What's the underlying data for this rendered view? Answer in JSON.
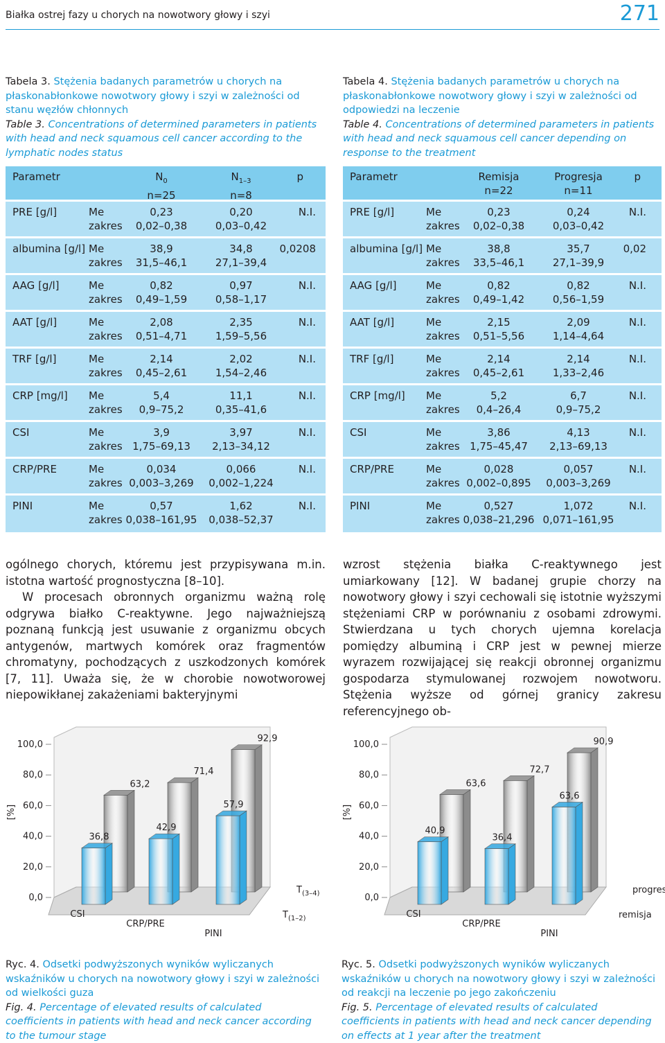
{
  "header": {
    "running_title": "Białka ostrej fazy u chorych na nowotwory głowy i szyi",
    "page": "271"
  },
  "tables": [
    {
      "label_pl": "Tabela 3.",
      "caption_pl": "Stężenia badanych parametrów u chorych na płaskonabłonkowe nowotwory głowy i szyi w zależności od stanu węzłów chłonnych",
      "label_en": "Table 3.",
      "caption_en": "Concentrations of determined parameters in patients with head and neck squamous cell cancer according to the lymphatic nodes status",
      "head": {
        "param": "Parametr",
        "groups": [
          {
            "main": "N",
            "sub": "0",
            "n": "n=25"
          },
          {
            "main": "N",
            "sub": "1–3",
            "n": "n=8"
          }
        ],
        "p": "p"
      },
      "rows": [
        {
          "param": "PRE [g/l]",
          "me": "Me",
          "zakres": "zakres",
          "values": [
            "0,23",
            "0,20"
          ],
          "ranges": [
            "0,02–0,38",
            "0,03–0,42"
          ],
          "p": "N.I."
        },
        {
          "param": "albumina [g/l]",
          "me": "Me",
          "zakres": "zakres",
          "values": [
            "38,9",
            "34,8"
          ],
          "ranges": [
            "31,5–46,1",
            "27,1–39,4"
          ],
          "p": "0,0208"
        },
        {
          "param": "AAG [g/l]",
          "me": "Me",
          "zakres": "zakres",
          "values": [
            "0,82",
            "0,97"
          ],
          "ranges": [
            "0,49–1,59",
            "0,58–1,17"
          ],
          "p": "N.I."
        },
        {
          "param": "AAT [g/l]",
          "me": "Me",
          "zakres": "zakres",
          "values": [
            "2,08",
            "2,35"
          ],
          "ranges": [
            "0,51–4,71",
            "1,59–5,56"
          ],
          "p": "N.I."
        },
        {
          "param": "TRF [g/l]",
          "me": "Me",
          "zakres": "zakres",
          "values": [
            "2,14",
            "2,02"
          ],
          "ranges": [
            "0,45–2,61",
            "1,54–2,46"
          ],
          "p": "N.I."
        },
        {
          "param": "CRP [mg/l]",
          "me": "Me",
          "zakres": "zakres",
          "values": [
            "5,4",
            "11,1"
          ],
          "ranges": [
            "0,9–75,2",
            "0,35–41,6"
          ],
          "p": "N.I."
        },
        {
          "param": "CSI",
          "me": "Me",
          "zakres": "zakres",
          "values": [
            "3,9",
            "3,97"
          ],
          "ranges": [
            "1,75–69,13",
            "2,13–34,12"
          ],
          "p": "N.I."
        },
        {
          "param": "CRP/PRE",
          "me": "Me",
          "zakres": "zakres",
          "values": [
            "0,034",
            "0,066"
          ],
          "ranges": [
            "0,003–3,269",
            "0,002–1,224"
          ],
          "p": "N.I."
        },
        {
          "param": "PINI",
          "me": "Me",
          "zakres": "zakres",
          "values": [
            "0,57",
            "1,62"
          ],
          "ranges": [
            "0,038–161,95",
            "0,038–52,37"
          ],
          "p": "N.I."
        }
      ]
    },
    {
      "label_pl": "Tabela 4.",
      "caption_pl": "Stężenia badanych parametrów u chorych na płaskonabłonkowe nowotwory głowy i szyi w zależności od odpowiedzi na leczenie",
      "label_en": "Table 4.",
      "caption_en": "Concentrations of determined parameters in patients with head and neck squamous cell cancer depending on response to the treatment",
      "head": {
        "param": "Parametr",
        "groups": [
          {
            "main": "Remisja",
            "n": "n=22"
          },
          {
            "main": "Progresja",
            "n": "n=11"
          }
        ],
        "p": "p"
      },
      "rows": [
        {
          "param": "PRE [g/l]",
          "me": "Me",
          "zakres": "zakres",
          "values": [
            "0,23",
            "0,24"
          ],
          "ranges": [
            "0,02–0,38",
            "0,03–0,42"
          ],
          "p": "N.I."
        },
        {
          "param": "albumina [g/l]",
          "me": "Me",
          "zakres": "zakres",
          "values": [
            "38,8",
            "35,7"
          ],
          "ranges": [
            "33,5–46,1",
            "27,1–39,9"
          ],
          "p": "0,02"
        },
        {
          "param": "AAG [g/l]",
          "me": "Me",
          "zakres": "zakres",
          "values": [
            "0,82",
            "0,82"
          ],
          "ranges": [
            "0,49–1,42",
            "0,56–1,59"
          ],
          "p": "N.I."
        },
        {
          "param": "AAT [g/l]",
          "me": "Me",
          "zakres": "zakres",
          "values": [
            "2,15",
            "2,09"
          ],
          "ranges": [
            "0,51–5,56",
            "1,14–4,64"
          ],
          "p": "N.I."
        },
        {
          "param": "TRF [g/l]",
          "me": "Me",
          "zakres": "zakres",
          "values": [
            "2,14",
            "2,14"
          ],
          "ranges": [
            "0,45–2,61",
            "1,33–2,46"
          ],
          "p": "N.I."
        },
        {
          "param": "CRP [mg/l]",
          "me": "Me",
          "zakres": "zakres",
          "values": [
            "5,2",
            "6,7"
          ],
          "ranges": [
            "0,4–26,4",
            "0,9–75,2"
          ],
          "p": "N.I."
        },
        {
          "param": "CSI",
          "me": "Me",
          "zakres": "zakres",
          "values": [
            "3,86",
            "4,13"
          ],
          "ranges": [
            "1,75–45,47",
            "2,13–69,13"
          ],
          "p": "N.I."
        },
        {
          "param": "CRP/PRE",
          "me": "Me",
          "zakres": "zakres",
          "values": [
            "0,028",
            "0,057"
          ],
          "ranges": [
            "0,002–0,895",
            "0,003–3,269"
          ],
          "p": "N.I."
        },
        {
          "param": "PINI",
          "me": "Me",
          "zakres": "zakres",
          "values": [
            "0,527",
            "1,072"
          ],
          "ranges": [
            "0,038–21,296",
            "0,071–161,95"
          ],
          "p": "N.I."
        }
      ]
    }
  ],
  "body": {
    "left": [
      "ogólnego chorych, któremu jest przypisywana m.in. istotna wartość prognostyczna [8–10].",
      "W procesach obronnych organizmu ważną rolę odgrywa białko C-reaktywne. Jego najważniejszą poznaną funkcją jest usuwanie z organizmu obcych antygenów, martwych komórek oraz fragmentów chromatyny, pochodzących z uszkodzonych komórek [7, 11]. Uważa się, że w chorobie nowotworowej niepowikłanej zakażeniami bakteryjnymi"
    ],
    "right": [
      "wzrost stężenia białka C-reaktywnego jest umiarkowany [12]. W badanej grupie chorzy na nowotwory głowy i szyi cechowali się istotnie wyższymi stężeniami CRP w porównaniu z osobami zdrowymi. Stwierdzana u tych chorych ujemna korelacja pomiędzy albuminą i CRP jest w pewnej mierze wyrazem rozwijającej się reakcji obronnej organizmu gospodarza stymulowanej rozwojem nowotworu. Stężenia wyższe od górnej granicy zakresu referencyjnego ob-"
    ]
  },
  "figures": [
    {
      "chart": {
        "type": "bar3d",
        "ylabel": "[%]",
        "categories": [
          "CSI",
          "CRP/PRE",
          "PINI"
        ],
        "ylim": [
          0,
          100
        ],
        "yticks": [
          {
            "value": 0,
            "label": "0,0"
          },
          {
            "value": 20,
            "label": "20,0"
          },
          {
            "value": 40,
            "label": "40,0"
          },
          {
            "value": 60,
            "label": "60,0"
          },
          {
            "value": 80,
            "label": "80,0"
          },
          {
            "value": 100,
            "label": "100,0"
          }
        ],
        "series": [
          {
            "name": "T",
            "name_sub": "(3–4)",
            "color": "#8c8c8c",
            "values": [
              63.2,
              71.4,
              92.9
            ],
            "value_labels": [
              "63,2",
              "71,4",
              "92,9"
            ]
          },
          {
            "name": "T",
            "name_sub": "(1–2)",
            "color": "#36a9e1",
            "values": [
              36.8,
              42.9,
              57.9
            ],
            "value_labels": [
              "36,8",
              "42,9",
              "57,9"
            ]
          }
        ]
      },
      "label_pl": "Ryc. 4.",
      "caption_pl": "Odsetki podwyższonych wyników wyliczanych wskaźników u chorych na nowotwory głowy i szyi w zależności od wielkości guza",
      "label_en": "Fig. 4.",
      "caption_en": "Percentage of elevated results of calculated coefficients in patients with head and neck cancer according to the tumour stage"
    },
    {
      "chart": {
        "type": "bar3d",
        "ylabel": "[%]",
        "categories": [
          "CSI",
          "CRP/PRE",
          "PINI"
        ],
        "ylim": [
          0,
          100
        ],
        "yticks": [
          {
            "value": 0,
            "label": "0,0"
          },
          {
            "value": 20,
            "label": "20,0"
          },
          {
            "value": 40,
            "label": "40,0"
          },
          {
            "value": 60,
            "label": "60,0"
          },
          {
            "value": 80,
            "label": "80,0"
          },
          {
            "value": 100,
            "label": "100,0"
          }
        ],
        "series": [
          {
            "name": "progresja",
            "color": "#8c8c8c",
            "values": [
              63.6,
              72.7,
              90.9
            ],
            "value_labels": [
              "63,6",
              "72,7",
              "90,9"
            ]
          },
          {
            "name": "remisja",
            "color": "#36a9e1",
            "values": [
              40.9,
              36.4,
              63.6
            ],
            "value_labels": [
              "40,9",
              "36,4",
              "63,6"
            ]
          }
        ]
      },
      "label_pl": "Ryc. 5.",
      "caption_pl": "Odsetki podwyższonych wyników wyliczanych wskaźników u chorych na nowotwory głowy i szyi w zależności od reakcji na leczenie po jego zakończeniu",
      "label_en": "Fig. 5.",
      "caption_en": "Percentage of elevated results of calculated coefficients in patients with head and neck cancer depending on effects at 1 year after the treatment"
    }
  ]
}
